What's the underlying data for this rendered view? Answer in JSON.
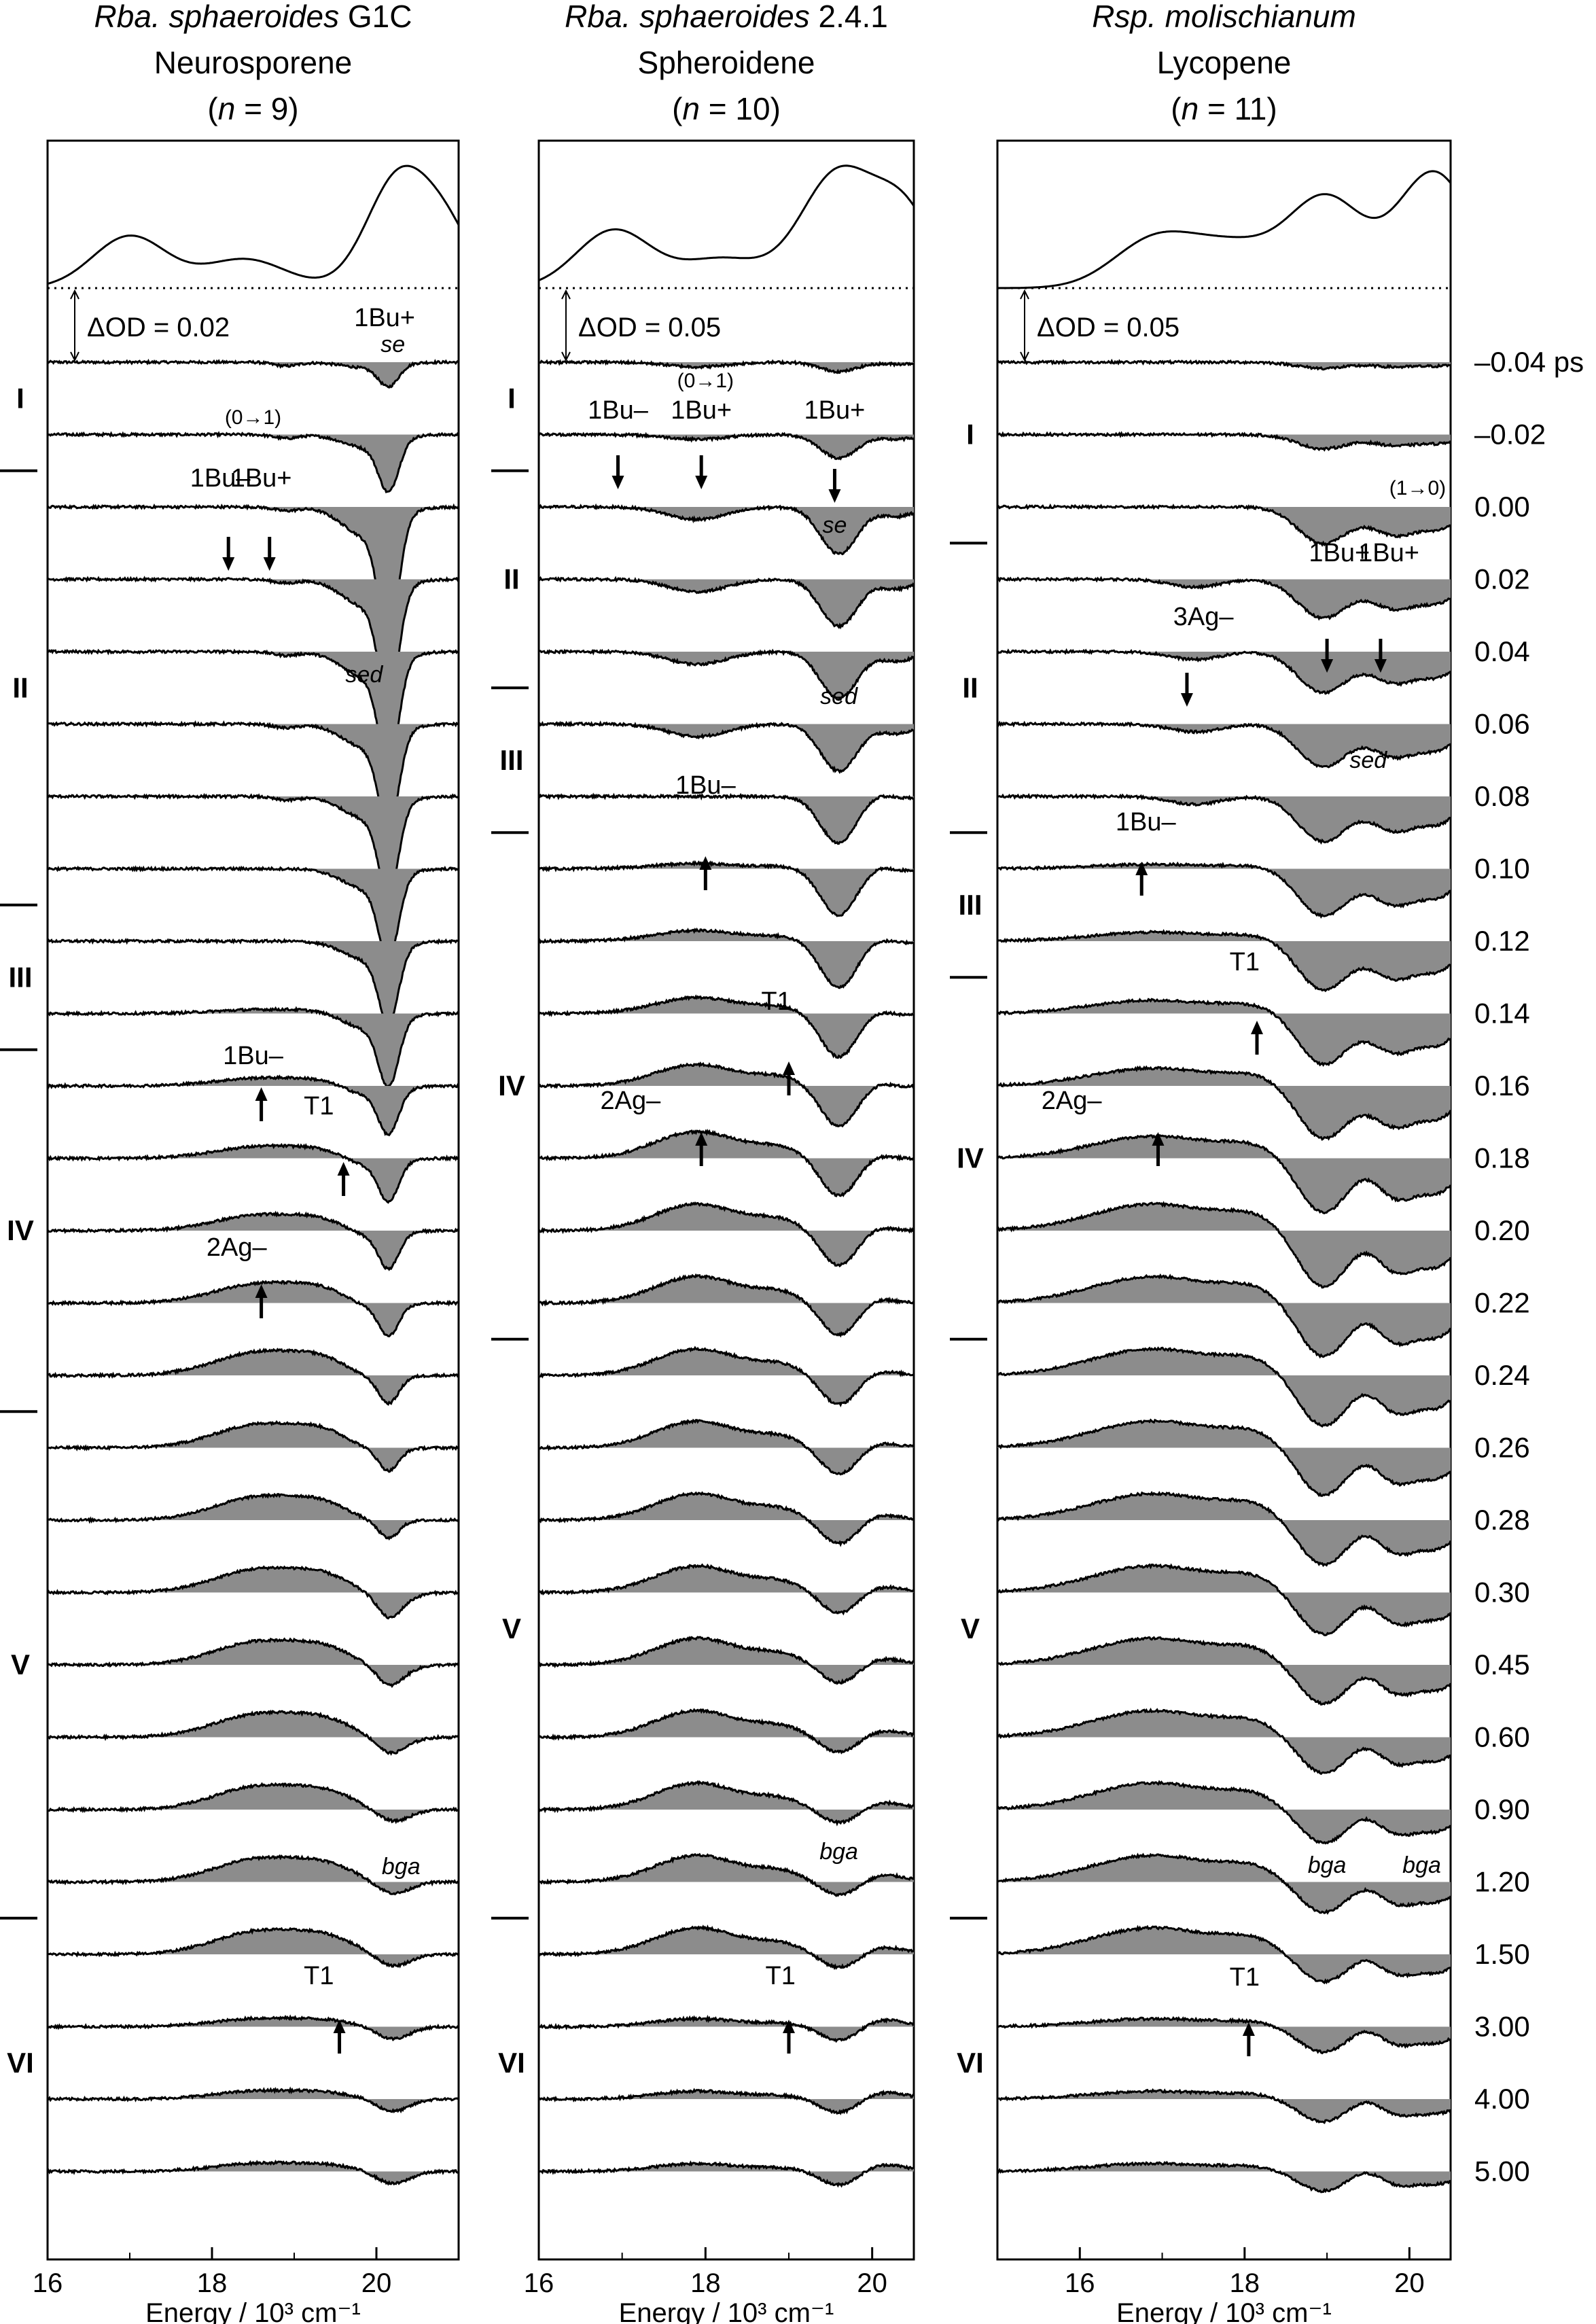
{
  "chart_data": {
    "type": "line",
    "xlabel": "Energy / 10³ cm⁻¹",
    "time_unit": "ps",
    "delays": [
      "–0.04",
      "–0.02",
      "0.00",
      "0.02",
      "0.04",
      "0.06",
      "0.08",
      "0.10",
      "0.12",
      "0.14",
      "0.16",
      "0.18",
      "0.20",
      "0.22",
      "0.24",
      "0.26",
      "0.28",
      "0.30",
      "0.45",
      "0.60",
      "0.90",
      "1.20",
      "1.50",
      "3.00",
      "4.00",
      "5.00"
    ],
    "panels": [
      {
        "title_species": "Rba. sphaeroides",
        "title_strain": " G1C",
        "carotenoid": "Neurosporene",
        "n_label": "(n = 9)",
        "n_italic": "n",
        "n_rest": " = 9)",
        "xlim": [
          16,
          21
        ],
        "xticks": [
          "16",
          "18",
          "20"
        ],
        "delta_od": "ΔOD = 0.02",
        "absorption_peaks": [
          {
            "x": 17.0,
            "h": 0.45,
            "w": 0.45
          },
          {
            "x": 18.4,
            "h": 0.25,
            "w": 0.5
          },
          {
            "x": 20.3,
            "h": 1.0,
            "w": 0.4
          },
          {
            "x": 20.9,
            "h": 0.35,
            "w": 0.3
          }
        ],
        "phases": [
          {
            "label": "I",
            "start": 0,
            "end": 1
          },
          {
            "label": "II",
            "start": 2,
            "end": 7
          },
          {
            "label": "III",
            "start": 8,
            "end": 9
          },
          {
            "label": "IV",
            "start": 10,
            "end": 14
          },
          {
            "label": "V",
            "start": 15,
            "end": 21
          },
          {
            "label": "VI",
            "start": 22,
            "end": 25
          }
        ],
        "annotations": {
          "se": "se",
          "sed": "sed",
          "bga": "bga",
          "t1_a": "T1",
          "t1_b": "T1",
          "b1u_minus": "1Bu–",
          "b1u_plus": "1Bu+",
          "a2g": "2Ag–",
          "vib": "(0→1)"
        }
      },
      {
        "title_species": "Rba. sphaeroides",
        "title_strain": " 2.4.1",
        "carotenoid": "Spheroidene",
        "n_label": "(n = 10)",
        "n_italic": "n",
        "n_rest": " = 10)",
        "xlim": [
          16,
          20.5
        ],
        "xticks": [
          "16",
          "18",
          "20"
        ],
        "delta_od": "ΔOD = 0.05",
        "absorption_peaks": [
          {
            "x": 16.9,
            "h": 0.5,
            "w": 0.45
          },
          {
            "x": 18.2,
            "h": 0.25,
            "w": 0.5
          },
          {
            "x": 19.6,
            "h": 1.0,
            "w": 0.45
          },
          {
            "x": 20.4,
            "h": 0.6,
            "w": 0.35
          }
        ],
        "phases": [
          {
            "label": "I",
            "start": 0,
            "end": 1
          },
          {
            "label": "II",
            "start": 2,
            "end": 4
          },
          {
            "label": "III",
            "start": 5,
            "end": 6
          },
          {
            "label": "IV",
            "start": 7,
            "end": 13
          },
          {
            "label": "V",
            "start": 14,
            "end": 21
          },
          {
            "label": "VI",
            "start": 22,
            "end": 25
          }
        ],
        "annotations": {
          "se": "se",
          "sed": "sed",
          "bga": "bga",
          "t1_a": "T1",
          "t1_b": "T1",
          "b1u_minus": "1Bu–",
          "b1u_plus": "1Bu+",
          "b1u_plus_b": "1Bu+",
          "b1u_minus_b": "1Bu–",
          "a2g": "2Ag–",
          "vib": "(0→1)"
        }
      },
      {
        "title_species": "Rsp. molischianum",
        "title_strain": "",
        "carotenoid": "Lycopene",
        "n_label": "(n = 11)",
        "n_italic": "n",
        "n_rest": " = 11)",
        "xlim": [
          15,
          20.5
        ],
        "xticks": [
          "16",
          "18",
          "20"
        ],
        "delta_od": "ΔOD = 0.05",
        "absorption_peaks": [
          {
            "x": 16.9,
            "h": 0.4,
            "w": 0.5
          },
          {
            "x": 17.9,
            "h": 0.35,
            "w": 0.55
          },
          {
            "x": 19.0,
            "h": 0.75,
            "w": 0.45
          },
          {
            "x": 20.3,
            "h": 1.0,
            "w": 0.45
          }
        ],
        "phases": [
          {
            "label": "I",
            "start": 0,
            "end": 2
          },
          {
            "label": "II",
            "start": 3,
            "end": 6
          },
          {
            "label": "III",
            "start": 7,
            "end": 8
          },
          {
            "label": "IV",
            "start": 9,
            "end": 13
          },
          {
            "label": "V",
            "start": 14,
            "end": 21
          },
          {
            "label": "VI",
            "start": 22,
            "end": 25
          }
        ],
        "annotations": {
          "sed": "sed",
          "bga": "bga",
          "bga_b": "bga",
          "t1_a": "T1",
          "t1_b": "T1",
          "b1u_minus": "1Bu–",
          "b1u_plus": "1Bu+",
          "b1u_plus_b": "1Bu+",
          "a3g": "3Ag–",
          "a2g": "2Ag–",
          "vib": "(1→0)"
        }
      }
    ],
    "time_axis_unit_label": " ps"
  }
}
